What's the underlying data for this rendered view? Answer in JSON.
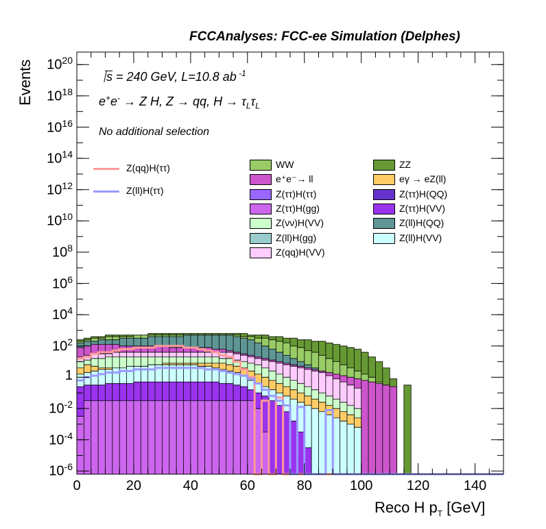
{
  "header": {
    "title": "FCCAnalyses: FCC-ee Simulation (Delphes)"
  },
  "annotations": {
    "energy_prefix": "s",
    "energy_rest": " = 240 GeV, L=10.8 ab",
    "lumi_exp": " -1",
    "process_main": "e",
    "process_sup1": "+",
    "process_e2": "e",
    "process_sup2": "-",
    "process_rest": " → Z H, Z  → qq, H  → τ",
    "process_sub1": "L",
    "process_tau2": "τ",
    "process_sub2": "L",
    "selection": "No additional selection"
  },
  "chart_data": {
    "type": "bar",
    "title": "FCCAnalyses: FCC-ee Simulation (Delphes)",
    "xlabel_main": "Reco H p",
    "xlabel_sub": "T",
    "xlabel_unit": " [GeV]",
    "ylabel": "Events",
    "xlim": [
      0,
      150
    ],
    "ylim_log10": [
      -6.2,
      20.8
    ],
    "log_y": true,
    "grid": false,
    "x_ticks": [
      "0",
      "20",
      "40",
      "60",
      "80",
      "100",
      "120",
      "140"
    ],
    "y_ticks": [
      {
        "base": "10",
        "exp": "20",
        "log": 20
      },
      {
        "base": "10",
        "exp": "18",
        "log": 18
      },
      {
        "base": "10",
        "exp": "16",
        "log": 16
      },
      {
        "base": "10",
        "exp": "14",
        "log": 14
      },
      {
        "base": "10",
        "exp": "12",
        "log": 12
      },
      {
        "base": "10",
        "exp": "10",
        "log": 10
      },
      {
        "base": "10",
        "exp": "8",
        "log": 8
      },
      {
        "base": "10",
        "exp": "6",
        "log": 6
      },
      {
        "base": "10",
        "exp": "4",
        "log": 4
      },
      {
        "base": "10",
        "exp": "2",
        "log": 2
      },
      {
        "base": "1",
        "exp": "",
        "log": 0
      },
      {
        "base": "10",
        "exp": "-2",
        "log": -2
      },
      {
        "base": "10",
        "exp": "-4",
        "log": -4
      },
      {
        "base": "10",
        "exp": "-6",
        "log": -6
      }
    ],
    "legend_position": "top-right",
    "stack_bin_width": 2.5,
    "stack_layers_log10": [
      {
        "name": "Z(ττ)H(gg)",
        "color": "#cc66ee",
        "values": [
          -2.5,
          -1.5,
          -1.5,
          -1.5,
          -1.5,
          -1.5,
          -1.5,
          -1.5,
          -1.5,
          -1.5,
          -1.5,
          -1.5,
          -1.5,
          -1.5,
          -1.5,
          -1.5,
          -1.5,
          -1.5,
          -1.5,
          -1.5,
          -1.5,
          -1.5,
          -1.5,
          -1.5,
          -1.5,
          -2.0,
          -3.5,
          -6.2,
          -6.2,
          -6.2,
          -6.2,
          -6.2,
          -6.2,
          -6.2,
          -6.2,
          -6.2,
          -6.2,
          -6.2,
          -6.2,
          -6.2,
          -6.2,
          -6.2,
          -6.2,
          -6.2,
          -6.2,
          -6.2,
          -6.2,
          -6.2,
          -6.2,
          -6.2,
          -6.2,
          -6.2,
          -6.2,
          -6.2,
          -6.2,
          -6.2,
          -6.2,
          -6.2,
          -6.2,
          -6.2
        ]
      },
      {
        "name": "Z(ττ)H(VV)",
        "color": "#9933ee",
        "values": [
          -0.6,
          -0.5,
          -0.5,
          -0.5,
          -0.4,
          -0.4,
          -0.4,
          -0.4,
          -0.3,
          -0.3,
          -0.3,
          -0.3,
          -0.3,
          -0.3,
          -0.3,
          -0.3,
          -0.3,
          -0.3,
          -0.3,
          -0.3,
          -0.4,
          -0.4,
          -0.5,
          -0.6,
          -0.8,
          -1.0,
          -1.2,
          -1.5,
          -1.8,
          -2.2,
          -2.8,
          -3.5,
          -4.5,
          -6.2,
          -6.2,
          -6.2,
          -6.2,
          -6.2,
          -6.2,
          -6.2,
          -6.2,
          -6.2,
          -6.2,
          -6.2,
          -6.2,
          -6.2,
          -6.2,
          -6.2,
          -6.2,
          -6.2,
          -6.2,
          -6.2,
          -6.2,
          -6.2,
          -6.2,
          -6.2,
          -6.2,
          -6.2,
          -6.2,
          -6.2
        ]
      },
      {
        "name": "Z(ll)H(VV)",
        "color": "#ccffff",
        "values": [
          0.2,
          0.3,
          0.4,
          0.5,
          0.5,
          0.6,
          0.6,
          0.7,
          0.7,
          0.7,
          0.8,
          0.8,
          0.8,
          0.8,
          0.8,
          0.8,
          0.8,
          0.7,
          0.7,
          0.6,
          0.5,
          0.4,
          0.3,
          0.1,
          -0.2,
          -0.4,
          -0.6,
          -0.8,
          -1.0,
          -1.2,
          -1.4,
          -1.6,
          -1.8,
          -2.0,
          -2.2,
          -2.4,
          -2.6,
          -2.8,
          -3.0,
          -3.2,
          -6.2,
          -6.2,
          -6.2,
          -6.2,
          -6.2,
          -6.2,
          -6.2,
          -6.2,
          -6.2,
          -6.2,
          -6.2,
          -6.2,
          -6.2,
          -6.2,
          -6.2,
          -6.2,
          -6.2,
          -6.2,
          -6.2,
          -6.2
        ]
      },
      {
        "name": "eγ → eZ(ll)",
        "color": "#ffcc66",
        "values": [
          0.6,
          0.8,
          0.7,
          0.6,
          0.6,
          0.6,
          0.6,
          0.6,
          0.6,
          0.7,
          0.8,
          0.8,
          0.9,
          0.9,
          0.9,
          0.9,
          0.9,
          0.9,
          0.9,
          0.9,
          0.9,
          0.8,
          0.7,
          0.6,
          0.4,
          0.2,
          0.0,
          -0.2,
          -0.4,
          -0.6,
          -0.8,
          -1.0,
          -1.2,
          -1.4,
          -1.6,
          -1.8,
          -2.0,
          -2.2,
          -2.4,
          -2.6,
          -6.2,
          -6.2,
          -6.2,
          -6.2,
          -6.2,
          -6.2,
          -6.2,
          -6.2,
          -6.2,
          -6.2,
          -6.2,
          -6.2,
          -6.2,
          -6.2,
          -6.2,
          -6.2,
          -6.2,
          -6.2,
          -6.2,
          -6.2
        ]
      },
      {
        "name": "Z(νν)H(VV)",
        "color": "#ccffcc",
        "values": [
          1.0,
          1.1,
          1.2,
          1.2,
          1.3,
          1.3,
          1.3,
          1.3,
          1.3,
          1.3,
          1.3,
          1.3,
          1.3,
          1.3,
          1.3,
          1.3,
          1.3,
          1.3,
          1.3,
          1.3,
          1.2,
          1.2,
          1.1,
          1.0,
          0.9,
          0.8,
          0.6,
          0.4,
          0.2,
          0.0,
          -0.2,
          -0.4,
          -0.6,
          -0.8,
          -1.0,
          -1.2,
          -1.4,
          -1.6,
          -1.8,
          -2.0,
          -6.2,
          -6.2,
          -6.2,
          -6.2,
          -6.2,
          -6.2,
          -6.2,
          -6.2,
          -6.2,
          -6.2,
          -6.2,
          -6.2,
          -6.2,
          -6.2,
          -6.2,
          -6.2,
          -6.2,
          -6.2,
          -6.2,
          -6.2
        ]
      },
      {
        "name": "Z(qq)H(VV)",
        "color": "#ffccff",
        "values": [
          1.3,
          1.4,
          1.5,
          1.5,
          1.5,
          1.6,
          1.6,
          1.6,
          1.6,
          1.6,
          1.6,
          1.6,
          1.6,
          1.6,
          1.6,
          1.6,
          1.6,
          1.6,
          1.6,
          1.6,
          1.6,
          1.6,
          1.5,
          1.4,
          1.3,
          1.2,
          1.1,
          1.0,
          0.9,
          0.8,
          0.7,
          0.6,
          0.5,
          0.4,
          0.3,
          0.1,
          -0.1,
          -0.3,
          -0.5,
          -0.7,
          -6.2,
          -6.2,
          -6.2,
          -6.2,
          -6.2,
          -6.2,
          -6.2,
          -6.2,
          -6.2,
          -6.2,
          -6.2,
          -6.2,
          -6.2,
          -6.2,
          -6.2,
          -6.2,
          -6.2,
          -6.2,
          -6.2,
          -6.2
        ]
      },
      {
        "name": "e+e-→ ll",
        "color": "#cc55cc",
        "values": [
          1.9,
          2.0,
          2.1,
          2.1,
          2.1,
          2.1,
          2.0,
          2.0,
          2.0,
          2.0,
          2.0,
          2.0,
          2.0,
          1.9,
          1.9,
          1.9,
          1.9,
          1.9,
          1.9,
          1.8,
          1.8,
          1.7,
          1.6,
          1.5,
          1.4,
          1.3,
          1.2,
          1.1,
          1.0,
          0.9,
          0.8,
          0.7,
          0.6,
          0.5,
          0.4,
          0.3,
          0.2,
          0.1,
          0.0,
          -0.1,
          -0.2,
          -0.3,
          -0.4,
          -0.5,
          -0.6,
          -6.2,
          -6.2,
          -6.2,
          -6.2,
          -6.2,
          -6.2,
          -6.2,
          -6.2,
          -6.2,
          -6.2,
          -6.2,
          -6.2,
          -6.2,
          -6.2,
          -6.2
        ]
      },
      {
        "name": "Z(ll)H(QQ)",
        "color": "#5f9595",
        "values": [
          2.2,
          2.3,
          2.3,
          2.4,
          2.4,
          2.4,
          2.5,
          2.5,
          2.5,
          2.5,
          2.6,
          2.6,
          2.6,
          2.6,
          2.6,
          2.7,
          2.7,
          2.7,
          2.7,
          2.7,
          2.7,
          2.7,
          2.6,
          2.5,
          2.4,
          2.2,
          2.0,
          1.8,
          1.6,
          1.4,
          1.2,
          1.0,
          0.8,
          0.6,
          0.4,
          0.2,
          0.0,
          -0.2,
          -0.4,
          -0.6,
          -0.8,
          -1.0,
          -6.2,
          -6.2,
          -6.2,
          -6.2,
          -6.2,
          -6.2,
          -6.2,
          -6.2,
          -6.2,
          -6.2,
          -6.2,
          -6.2,
          -6.2,
          -6.2,
          -6.2,
          -6.2,
          -6.2,
          -6.2
        ]
      },
      {
        "name": "WW",
        "color": "#99cc66",
        "values": [
          2.3,
          2.4,
          2.5,
          2.5,
          2.6,
          2.6,
          2.6,
          2.6,
          2.7,
          2.7,
          2.7,
          2.7,
          2.7,
          2.7,
          2.7,
          2.7,
          2.7,
          2.7,
          2.7,
          2.7,
          2.7,
          2.7,
          2.7,
          2.6,
          2.6,
          2.5,
          2.5,
          2.4,
          2.3,
          2.2,
          2.0,
          1.9,
          1.7,
          1.6,
          1.4,
          1.2,
          1.0,
          0.8,
          0.6,
          0.4,
          0.2,
          0.0,
          -0.3,
          -0.6,
          -6.2,
          -6.2,
          -6.2,
          -6.2,
          -6.2,
          -6.2,
          -6.2,
          -6.2,
          -6.2,
          -6.2,
          -6.2,
          -6.2,
          -6.2,
          -6.2,
          -6.2,
          -6.2
        ]
      },
      {
        "name": "ZZ",
        "color": "#669933",
        "values": [
          2.4,
          2.5,
          2.6,
          2.6,
          2.7,
          2.7,
          2.7,
          2.7,
          2.7,
          2.7,
          2.8,
          2.8,
          2.8,
          2.8,
          2.8,
          2.8,
          2.8,
          2.8,
          2.8,
          2.8,
          2.8,
          2.8,
          2.8,
          2.8,
          2.7,
          2.7,
          2.7,
          2.6,
          2.6,
          2.5,
          2.5,
          2.4,
          2.4,
          2.3,
          2.3,
          2.2,
          2.1,
          2.0,
          1.9,
          1.8,
          1.6,
          1.3,
          1.0,
          0.6,
          -0.1,
          -6.2,
          -0.5,
          -6.2,
          -6.2,
          -6.2,
          -6.2,
          -6.2,
          -6.2,
          -6.2,
          -6.2,
          -6.2,
          -6.2,
          -6.2,
          -6.2,
          -6.2
        ]
      }
    ],
    "signal_lines_log10": [
      {
        "name": "Z(qq)H(ττ)",
        "color": "#ff9999",
        "values": [
          1.2,
          1.3,
          1.5,
          1.6,
          1.6,
          1.7,
          1.8,
          1.8,
          1.9,
          1.9,
          1.9,
          2.0,
          2.0,
          2.0,
          2.0,
          1.9,
          1.9,
          1.8,
          1.7,
          1.6,
          1.4,
          1.3,
          1.0,
          0.5,
          0.0,
          -6.2,
          -1.5,
          -6.2,
          -1.3,
          -6.2,
          -6.2,
          -6.2,
          -6.2,
          -6.2,
          -6.2,
          -6.2,
          -6.2,
          -6.2,
          -6.2,
          -6.2,
          -6.2,
          -6.2,
          -6.2,
          -6.2,
          -6.2,
          -6.2,
          -6.2,
          -6.2,
          -6.2,
          -6.2,
          -6.2,
          -6.2,
          -6.2,
          -6.2,
          -6.2,
          -6.2,
          -6.2,
          -6.2,
          -6.2,
          -6.2
        ]
      },
      {
        "name": "Z(ll)H(ττ)",
        "color": "#9999ff",
        "values": [
          -0.2,
          0.0,
          0.1,
          0.2,
          0.3,
          0.3,
          0.4,
          0.4,
          0.5,
          0.5,
          0.5,
          0.6,
          0.6,
          0.6,
          0.6,
          0.6,
          0.6,
          0.6,
          0.5,
          0.5,
          0.4,
          0.3,
          0.2,
          0.1,
          -0.1,
          -0.4,
          -0.8,
          -1.2,
          -1.5,
          -1.8,
          -6.2,
          -1.9,
          -6.2,
          -6.2,
          -6.2,
          -2.1,
          -6.2,
          -6.2,
          -6.2,
          -6.2,
          -6.2,
          -6.2,
          -6.2,
          -6.2,
          -6.2,
          -6.2,
          -6.2,
          -6.2,
          -6.2,
          -6.2,
          -6.2,
          -6.2,
          -6.2,
          -6.2,
          -6.2,
          -6.2,
          -6.2,
          -6.2,
          -6.2,
          -6.2
        ]
      }
    ],
    "legend_columns": [
      [
        "WW",
        "e+e-→ ll",
        "Z(ττ)H(ττ)",
        "Z(ττ)H(gg)",
        "Z(νν)H(VV)",
        "Z(ll)H(gg)",
        "Z(qq)H(VV)"
      ],
      [
        "ZZ",
        "eγ → eZ(ll)",
        "Z(ττ)H(QQ)",
        "Z(ττ)H(VV)",
        "Z(ll)H(QQ)",
        "Z(ll)H(VV)"
      ]
    ]
  },
  "legend": {
    "lines": [
      {
        "label": "Z(qq)H(ττ)",
        "color": "#ff9999"
      },
      {
        "label": "Z(ll)H(ττ)",
        "color": "#9999ff"
      }
    ],
    "boxes_col1": [
      {
        "html": "WW",
        "color": "#99cc66"
      },
      {
        "html": "e⁺e⁻→ ll",
        "color": "#cc55cc"
      },
      {
        "html": "Z(ττ)H(ττ)",
        "color": "#9966ff"
      },
      {
        "html": "Z(ττ)H(gg)",
        "color": "#cc66ee"
      },
      {
        "html": "Z(νν)H(VV)",
        "color": "#ccffcc"
      },
      {
        "html": "Z(ll)H(gg)",
        "color": "#99cccc"
      },
      {
        "html": "Z(qq)H(VV)",
        "color": "#ffccff"
      }
    ],
    "boxes_col2": [
      {
        "html": "ZZ",
        "color": "#669933"
      },
      {
        "html": "eγ → eZ(ll)",
        "color": "#ffcc66"
      },
      {
        "html": "Z(ττ)H(QQ)",
        "color": "#6633cc"
      },
      {
        "html": "Z(ττ)H(VV)",
        "color": "#9933ee"
      },
      {
        "html": "Z(ll)H(QQ)",
        "color": "#5f9595"
      },
      {
        "html": "Z(ll)H(VV)",
        "color": "#ccffff"
      }
    ]
  }
}
